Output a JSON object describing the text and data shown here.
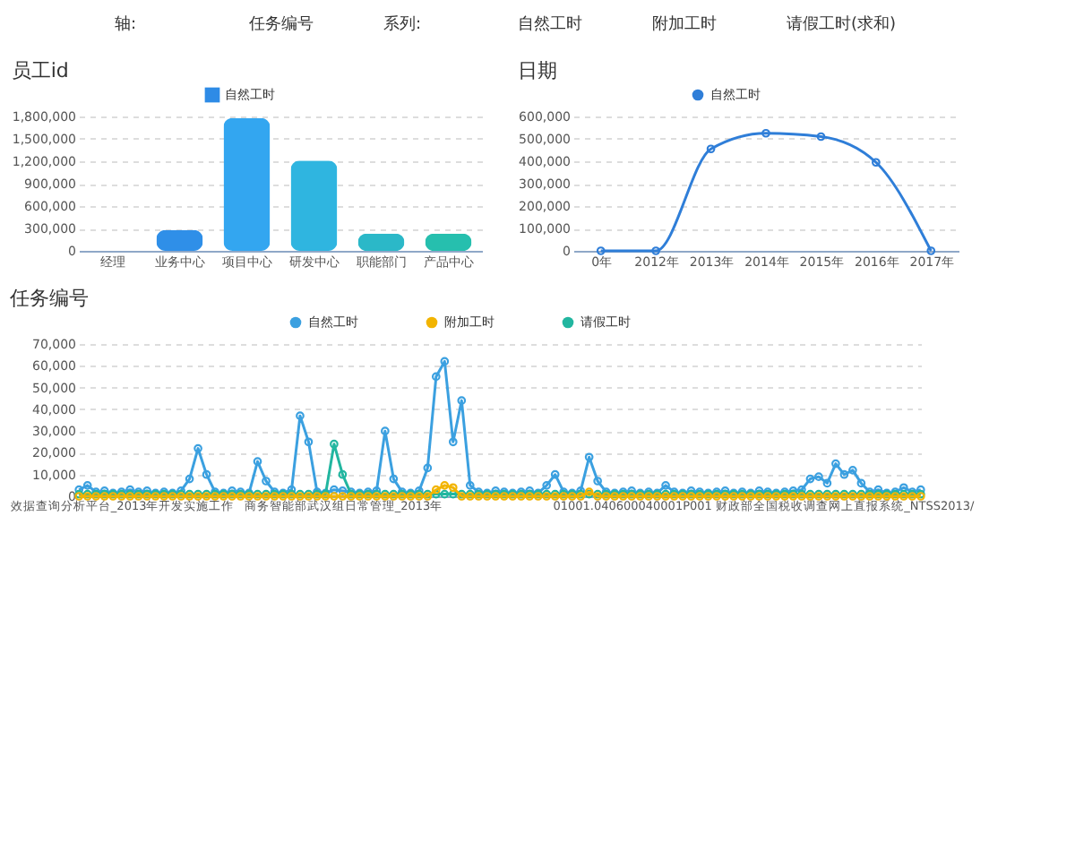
{
  "chart_data": [
    {
      "type": "bar",
      "title": "员工id",
      "annotations": [
        "轴:",
        "任务编号",
        "系列:",
        "自然工时",
        "附加工时",
        "请假工时(求和)"
      ],
      "categories": [
        "经理",
        "业务中心",
        "项目中心",
        "研发中心",
        "职能部门",
        "产品中心"
      ],
      "series": [
        {
          "name": "自然工时",
          "values": [
            0,
            280000,
            1780000,
            1210000,
            230000,
            230000
          ]
        }
      ],
      "colors": [
        "#2e8be6",
        "#2f8fe8",
        "#33a6f0",
        "#2fb5e0",
        "#2bb8c8",
        "#26bfae"
      ],
      "ylim": [
        0,
        1800000
      ],
      "yticks": [
        0,
        {
          "value": 300000,
          "label": "300,000"
        },
        {
          "value": 600000,
          "label": "600,000"
        },
        {
          "value": 900000,
          "label": "900,000"
        },
        {
          "value": 1200000,
          "label": "1,200,000"
        },
        {
          "value": 1500000,
          "label": "1,500,000"
        },
        {
          "value": 1800000,
          "label": "1,800,000"
        }
      ],
      "grid": "y",
      "legend": "top"
    },
    {
      "type": "line",
      "title": "日期",
      "categories": [
        "0年",
        "2012年",
        "2013年",
        "2014年",
        "2015年",
        "2016年",
        "2017年"
      ],
      "series": [
        {
          "name": "自然工时",
          "color": "#2f7ed8",
          "values": [
            0,
            0,
            455000,
            525000,
            510000,
            395000,
            0
          ]
        }
      ],
      "ylim": [
        0,
        600000
      ],
      "yticks": [
        0,
        {
          "value": 100000,
          "label": "100,000"
        },
        {
          "value": 200000,
          "label": "200,000"
        },
        {
          "value": 300000,
          "label": "300,000"
        },
        {
          "value": 400000,
          "label": "400,000"
        },
        {
          "value": 500000,
          "label": "500,000"
        },
        {
          "value": 600000,
          "label": "600,000"
        }
      ],
      "grid": "y",
      "legend": "top",
      "marker": "circle",
      "line_style": "solid"
    },
    {
      "type": "line",
      "title": "任务编号",
      "categories": [
        null,
        null,
        null,
        null,
        null,
        "效据查询分析平台_2013年开发实施工作",
        null,
        null,
        null,
        null,
        null,
        null,
        null,
        null,
        null,
        null,
        null,
        null,
        null,
        null,
        null,
        null,
        null,
        null,
        null,
        null,
        null,
        null,
        null,
        null,
        null,
        "商务智能部武汉组日常管理_2013年",
        null,
        null,
        null,
        null,
        null,
        null,
        null,
        null,
        null,
        null,
        null,
        null,
        null,
        null,
        null,
        null,
        null,
        null,
        null,
        null,
        null,
        null,
        null,
        null,
        null,
        null,
        null,
        null,
        null,
        null,
        null,
        null,
        null,
        "01001.040600040001P001",
        null,
        null,
        null,
        null,
        null,
        null,
        null,
        null,
        null,
        null,
        null,
        null,
        null,
        null,
        null,
        null,
        null,
        null,
        null,
        null,
        null,
        null,
        null,
        null,
        "财政部全国税收调查网上直报系统_NTSS2013/",
        null,
        null,
        null,
        null,
        null,
        null,
        null,
        null,
        null
      ],
      "series": [
        {
          "name": "自然工时",
          "color": "#3ba0e0",
          "values": [
            3000,
            5000,
            2000,
            2500,
            1500,
            2000,
            3000,
            2000,
            2500,
            1500,
            2000,
            1500,
            2500,
            8000,
            22000,
            10000,
            2000,
            1500,
            2500,
            2000,
            1500,
            16000,
            7000,
            2000,
            1500,
            3000,
            37000,
            25000,
            2000,
            1500,
            3000,
            2500,
            2000,
            1500,
            2000,
            2500,
            30000,
            8000,
            2000,
            1500,
            2500,
            13000,
            55000,
            62000,
            25000,
            44000,
            5000,
            2000,
            1500,
            2500,
            2000,
            1500,
            2000,
            2500,
            1500,
            5000,
            10000,
            2000,
            1500,
            2500,
            18000,
            7000,
            2000,
            1500,
            2000,
            2500,
            1500,
            2000,
            1500,
            5000,
            2000,
            1500,
            2500,
            2000,
            1500,
            2000,
            2500,
            1500,
            2000,
            1500,
            2500,
            2000,
            1500,
            2000,
            2500,
            3000,
            8000,
            9000,
            6000,
            15000,
            10000,
            12000,
            6000,
            2000,
            3000,
            1500,
            2000,
            4000,
            2000,
            3000
          ]
        },
        {
          "name": "附加工时",
          "color": "#f2b400",
          "values": [
            0,
            0,
            0,
            0,
            0,
            0,
            0,
            0,
            0,
            0,
            0,
            0,
            0,
            0,
            0,
            0,
            0,
            0,
            0,
            0,
            0,
            0,
            0,
            0,
            0,
            0,
            0,
            0,
            0,
            0,
            0,
            0,
            0,
            0,
            0,
            0,
            0,
            0,
            0,
            0,
            0,
            0,
            3000,
            5000,
            4000,
            0,
            0,
            0,
            0,
            0,
            0,
            0,
            0,
            0,
            0,
            0,
            0,
            0,
            0,
            0,
            2000,
            0,
            0,
            0,
            0,
            0,
            0,
            0,
            0,
            0,
            0,
            0,
            0,
            0,
            0,
            0,
            0,
            0,
            0,
            0,
            0,
            0,
            0,
            0,
            0,
            0,
            0,
            0,
            0,
            0,
            0,
            0,
            0,
            0,
            0,
            0,
            0,
            0,
            0,
            0
          ]
        },
        {
          "name": "请假工时",
          "color": "#22b6a0",
          "values": [
            1000,
            1000,
            1000,
            1000,
            1000,
            1000,
            1000,
            1000,
            1000,
            1000,
            1000,
            1000,
            1000,
            1000,
            1000,
            1000,
            1000,
            1000,
            1000,
            1000,
            1000,
            1000,
            1000,
            1000,
            1000,
            1000,
            1000,
            1000,
            1000,
            1000,
            24000,
            10000,
            1000,
            1000,
            1000,
            1000,
            1000,
            1000,
            1000,
            1000,
            1000,
            1000,
            1000,
            1000,
            1000,
            1000,
            1000,
            1000,
            1000,
            1000,
            1000,
            1000,
            1000,
            1000,
            1000,
            1000,
            1000,
            1000,
            1000,
            1000,
            1000,
            1000,
            1000,
            1000,
            1000,
            1000,
            1000,
            1000,
            1000,
            1000,
            1000,
            1000,
            1000,
            1000,
            1000,
            1000,
            1000,
            1000,
            1000,
            1000,
            1000,
            1000,
            1000,
            1000,
            1000,
            1000,
            1000,
            1000,
            1000,
            1000,
            1000,
            1000,
            1000,
            1000,
            1000,
            1000,
            1000,
            1000,
            1000,
            1000
          ]
        }
      ],
      "ylim": [
        0,
        70000
      ],
      "yticks": [
        0,
        {
          "value": 10000,
          "label": "10,000"
        },
        {
          "value": 20000,
          "label": "20,000"
        },
        {
          "value": 30000,
          "label": "30,000"
        },
        {
          "value": 40000,
          "label": "40,000"
        },
        {
          "value": 50000,
          "label": "50,000"
        },
        {
          "value": 60000,
          "label": "60,000"
        },
        {
          "value": 70000,
          "label": "70,000"
        }
      ],
      "grid": "y",
      "legend": "top",
      "marker": "circle",
      "line_style": "solid"
    }
  ]
}
